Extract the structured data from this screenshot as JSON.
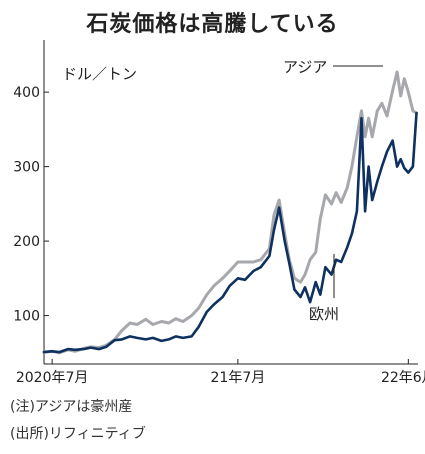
{
  "chart_data": {
    "type": "line",
    "title": "石炭価格は高騰している",
    "unit_label": "ドル／トン",
    "ylim": [
      35,
      470
    ],
    "y_ticks": [
      100,
      200,
      300,
      400
    ],
    "x_range": [
      "2020-06-15",
      "2022-06-20"
    ],
    "x_ticks": [
      {
        "label": "2020年7月",
        "date": "2020-07-01"
      },
      {
        "label": "21年7月",
        "date": "2021-07-01"
      },
      {
        "label": "22年6月",
        "date": "2022-06-01"
      }
    ],
    "series": [
      {
        "name": "アジア",
        "color": "#a6a8ad",
        "points": [
          [
            "2020-06-15",
            51
          ],
          [
            "2020-07-01",
            52
          ],
          [
            "2020-07-15",
            50
          ],
          [
            "2020-08-01",
            54
          ],
          [
            "2020-08-15",
            52
          ],
          [
            "2020-09-01",
            56
          ],
          [
            "2020-09-15",
            58
          ],
          [
            "2020-10-01",
            57
          ],
          [
            "2020-10-15",
            60
          ],
          [
            "2020-11-01",
            68
          ],
          [
            "2020-11-15",
            80
          ],
          [
            "2020-12-01",
            90
          ],
          [
            "2020-12-15",
            88
          ],
          [
            "2021-01-01",
            95
          ],
          [
            "2021-01-15",
            88
          ],
          [
            "2021-02-01",
            92
          ],
          [
            "2021-02-15",
            90
          ],
          [
            "2021-03-01",
            96
          ],
          [
            "2021-03-15",
            92
          ],
          [
            "2021-04-01",
            100
          ],
          [
            "2021-04-15",
            110
          ],
          [
            "2021-05-01",
            128
          ],
          [
            "2021-05-15",
            140
          ],
          [
            "2021-06-01",
            150
          ],
          [
            "2021-06-15",
            160
          ],
          [
            "2021-07-01",
            172
          ],
          [
            "2021-07-15",
            172
          ],
          [
            "2021-08-01",
            172
          ],
          [
            "2021-08-15",
            175
          ],
          [
            "2021-09-01",
            190
          ],
          [
            "2021-09-10",
            235
          ],
          [
            "2021-09-20",
            255
          ],
          [
            "2021-10-01",
            210
          ],
          [
            "2021-10-10",
            175
          ],
          [
            "2021-10-20",
            150
          ],
          [
            "2021-11-01",
            145
          ],
          [
            "2021-11-10",
            155
          ],
          [
            "2021-11-20",
            175
          ],
          [
            "2021-12-01",
            185
          ],
          [
            "2021-12-10",
            230
          ],
          [
            "2021-12-20",
            262
          ],
          [
            "2022-01-01",
            250
          ],
          [
            "2022-01-10",
            265
          ],
          [
            "2022-01-20",
            252
          ],
          [
            "2022-02-01",
            272
          ],
          [
            "2022-02-10",
            300
          ],
          [
            "2022-02-20",
            340
          ],
          [
            "2022-03-01",
            375
          ],
          [
            "2022-03-08",
            340
          ],
          [
            "2022-03-15",
            365
          ],
          [
            "2022-03-22",
            340
          ],
          [
            "2022-04-01",
            375
          ],
          [
            "2022-04-10",
            385
          ],
          [
            "2022-04-20",
            368
          ],
          [
            "2022-05-01",
            402
          ],
          [
            "2022-05-10",
            427
          ],
          [
            "2022-05-17",
            395
          ],
          [
            "2022-05-24",
            418
          ],
          [
            "2022-06-01",
            400
          ],
          [
            "2022-06-10",
            375
          ],
          [
            "2022-06-17",
            372
          ]
        ]
      },
      {
        "name": "欧州",
        "color": "#0e3160",
        "points": [
          [
            "2020-06-15",
            51
          ],
          [
            "2020-07-01",
            52
          ],
          [
            "2020-07-15",
            51
          ],
          [
            "2020-08-01",
            55
          ],
          [
            "2020-08-15",
            54
          ],
          [
            "2020-09-01",
            55
          ],
          [
            "2020-09-15",
            57
          ],
          [
            "2020-10-01",
            55
          ],
          [
            "2020-10-15",
            58
          ],
          [
            "2020-11-01",
            67
          ],
          [
            "2020-11-15",
            68
          ],
          [
            "2020-12-01",
            72
          ],
          [
            "2020-12-15",
            70
          ],
          [
            "2021-01-01",
            68
          ],
          [
            "2021-01-15",
            70
          ],
          [
            "2021-02-01",
            66
          ],
          [
            "2021-02-15",
            68
          ],
          [
            "2021-03-01",
            72
          ],
          [
            "2021-03-15",
            70
          ],
          [
            "2021-04-01",
            72
          ],
          [
            "2021-04-15",
            85
          ],
          [
            "2021-05-01",
            105
          ],
          [
            "2021-05-15",
            115
          ],
          [
            "2021-06-01",
            125
          ],
          [
            "2021-06-15",
            140
          ],
          [
            "2021-07-01",
            150
          ],
          [
            "2021-07-15",
            148
          ],
          [
            "2021-08-01",
            160
          ],
          [
            "2021-08-15",
            165
          ],
          [
            "2021-09-01",
            180
          ],
          [
            "2021-09-10",
            215
          ],
          [
            "2021-09-20",
            245
          ],
          [
            "2021-10-01",
            200
          ],
          [
            "2021-10-10",
            170
          ],
          [
            "2021-10-20",
            135
          ],
          [
            "2021-11-01",
            125
          ],
          [
            "2021-11-10",
            138
          ],
          [
            "2021-11-20",
            118
          ],
          [
            "2021-12-01",
            145
          ],
          [
            "2021-12-10",
            128
          ],
          [
            "2021-12-20",
            165
          ],
          [
            "2022-01-01",
            155
          ],
          [
            "2022-01-10",
            175
          ],
          [
            "2022-01-20",
            172
          ],
          [
            "2022-02-01",
            192
          ],
          [
            "2022-02-10",
            210
          ],
          [
            "2022-02-20",
            240
          ],
          [
            "2022-03-01",
            365
          ],
          [
            "2022-03-08",
            240
          ],
          [
            "2022-03-15",
            300
          ],
          [
            "2022-03-22",
            255
          ],
          [
            "2022-04-01",
            280
          ],
          [
            "2022-04-10",
            300
          ],
          [
            "2022-04-20",
            320
          ],
          [
            "2022-05-01",
            335
          ],
          [
            "2022-05-10",
            300
          ],
          [
            "2022-05-17",
            310
          ],
          [
            "2022-05-24",
            298
          ],
          [
            "2022-06-01",
            292
          ],
          [
            "2022-06-10",
            300
          ],
          [
            "2022-06-17",
            372
          ]
        ]
      }
    ]
  },
  "notes": [
    "(注)アジアは豪州産",
    "(出所)リフィニティブ"
  ]
}
